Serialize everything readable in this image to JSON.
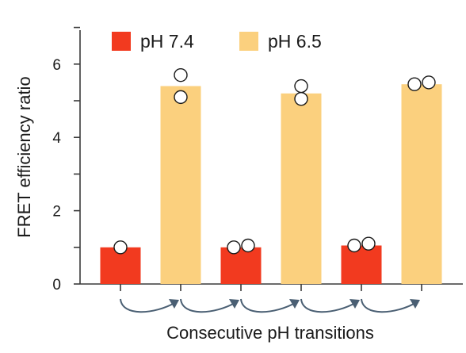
{
  "chart_data": {
    "type": "bar",
    "ylabel": "FRET efficiency ratio",
    "xlabel": "Consecutive pH transitions",
    "ylim": [
      0,
      7
    ],
    "yticks": [
      0,
      2,
      4,
      6
    ],
    "legend_position": "top",
    "grid": false,
    "series": [
      {
        "name": "pH 7.4",
        "color": "#f23a1f"
      },
      {
        "name": "pH 6.5",
        "color": "#fbd07e"
      }
    ],
    "bars": [
      {
        "series": "pH 7.4",
        "value": 1.0,
        "points": [
          1.0
        ]
      },
      {
        "series": "pH 6.5",
        "value": 5.4,
        "points": [
          5.7,
          5.1
        ]
      },
      {
        "series": "pH 7.4",
        "value": 1.0,
        "points": [
          1.0,
          1.05
        ]
      },
      {
        "series": "pH 6.5",
        "value": 5.2,
        "points": [
          5.4,
          5.05
        ]
      },
      {
        "series": "pH 7.4",
        "value": 1.05,
        "points": [
          1.05,
          1.1
        ]
      },
      {
        "series": "pH 6.5",
        "value": 5.45,
        "points": [
          5.45,
          5.5
        ]
      }
    ],
    "transitions": 5
  }
}
